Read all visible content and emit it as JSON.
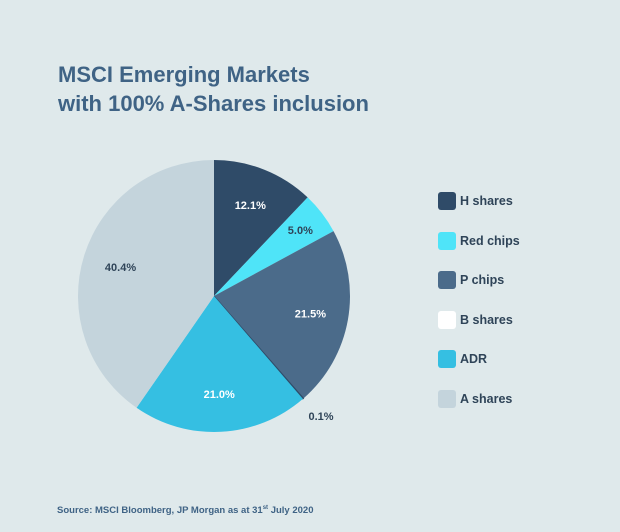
{
  "chart_data": {
    "type": "pie",
    "title": "MSCI Emerging Markets with 100% A-Shares inclusion",
    "title_lines": [
      "MSCI Emerging Markets",
      "with 100% A-Shares inclusion"
    ],
    "categories": [
      "H shares",
      "Red chips",
      "P chips",
      "B shares",
      "ADR",
      "A shares"
    ],
    "values": [
      12.1,
      5.0,
      21.5,
      0.1,
      21.0,
      40.4
    ],
    "labels": [
      "12.1%",
      "5.0%",
      "21.5%",
      "0.1%",
      "21.0%",
      "40.4%"
    ],
    "colors": [
      "#2f4b68",
      "#4fe4f8",
      "#4b6b8a",
      "#ffffff",
      "#35bfe2",
      "#c4d4dc"
    ],
    "start_angle": "top, clockwise",
    "legend_position": "right"
  },
  "source": {
    "text": "Source: MSCI Bloomberg, JP Morgan as at 31",
    "sup": "st",
    "tail": " July 2020"
  }
}
